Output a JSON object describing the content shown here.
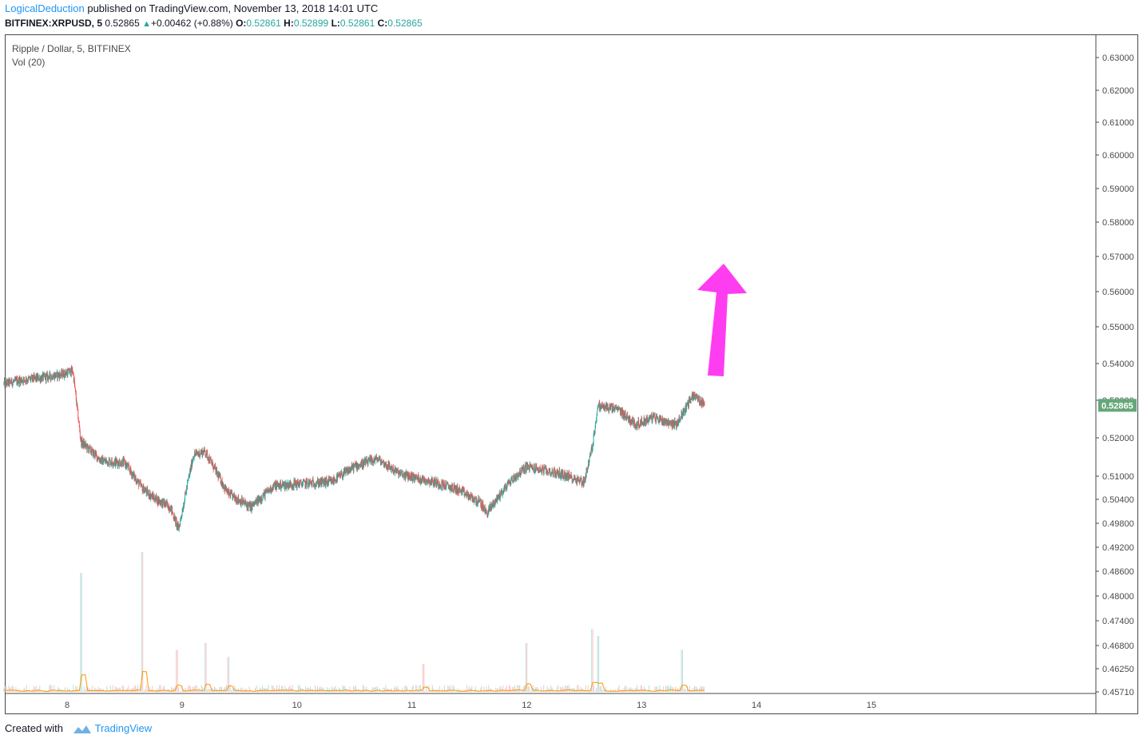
{
  "header": {
    "author": "LogicalDeduction",
    "published_text": " published on TradingView.com, November 13, 2018 14:01 UTC",
    "symbol": "BITFINEX:XRPUSD, 5",
    "price": "0.52865",
    "change": "+0.00462 (+0.88%)",
    "o_label": "O:",
    "o_value": "0.52861",
    "h_label": "H:",
    "h_value": "0.52899",
    "l_label": "L:",
    "l_value": "0.52861",
    "c_label": "C:",
    "c_value": "0.52865"
  },
  "legend": {
    "series_name": "Ripple / Dollar, 5, BITFINEX",
    "volume_name": "Vol (20)"
  },
  "footer": {
    "created_with": "Created with",
    "brand": "TradingView"
  },
  "colors": {
    "up": "#26a69a",
    "down": "#ef5350",
    "arrow": "#ff3df0",
    "last_price_bg": "#66a77a",
    "volume_ma": "#ff9800"
  },
  "chart_data": {
    "type": "candlestick",
    "title": "Ripple / Dollar, 5, BITFINEX",
    "x_ticks": [
      "8",
      "9",
      "10",
      "11",
      "12",
      "13",
      "14",
      "15"
    ],
    "x_tick_days": [
      8,
      9,
      10,
      11,
      12,
      13,
      14,
      15
    ],
    "y_ticks": [
      "0.63000",
      "0.62000",
      "0.61000",
      "0.60000",
      "0.59000",
      "0.58000",
      "0.57000",
      "0.56000",
      "0.55000",
      "0.54000",
      "0.53000",
      "0.52000",
      "0.51000",
      "0.50400",
      "0.49800",
      "0.49200",
      "0.48600",
      "0.48000",
      "0.47400",
      "0.46800",
      "0.46250",
      "0.45710"
    ],
    "ylim": [
      0.4571,
      0.635
    ],
    "last_price": "0.52865",
    "last_price_value": 0.52865,
    "price_series": {
      "name": "XRPUSD",
      "x_days": [
        7.45,
        7.6,
        7.75,
        7.95,
        8.05,
        8.12,
        8.3,
        8.5,
        8.65,
        8.75,
        8.9,
        8.97,
        9.1,
        9.2,
        9.4,
        9.6,
        9.8,
        10.0,
        10.3,
        10.5,
        10.7,
        10.9,
        11.2,
        11.4,
        11.6,
        11.65,
        11.85,
        12.0,
        12.3,
        12.5,
        12.57,
        12.62,
        12.8,
        12.95,
        13.1,
        13.3,
        13.45,
        13.55
      ],
      "values": [
        0.5345,
        0.5355,
        0.536,
        0.537,
        0.538,
        0.519,
        0.514,
        0.5135,
        0.507,
        0.5045,
        0.502,
        0.4965,
        0.5155,
        0.5165,
        0.5055,
        0.502,
        0.5075,
        0.508,
        0.5085,
        0.5125,
        0.5145,
        0.5105,
        0.5085,
        0.5065,
        0.503,
        0.5005,
        0.5085,
        0.5125,
        0.5105,
        0.5085,
        0.5175,
        0.5285,
        0.5275,
        0.5235,
        0.5255,
        0.5235,
        0.5315,
        0.5287
      ]
    },
    "volume": {
      "name": "Vol (20)",
      "spikes_days": [
        8.12,
        8.65,
        8.95,
        9.2,
        9.4,
        11.1,
        12.0,
        12.57,
        12.62,
        13.35
      ],
      "spikes_relative": [
        0.85,
        1.0,
        0.3,
        0.35,
        0.25,
        0.2,
        0.35,
        0.45,
        0.4,
        0.3
      ]
    },
    "annotation": {
      "type": "arrow",
      "direction": "up"
    },
    "grid": false
  }
}
